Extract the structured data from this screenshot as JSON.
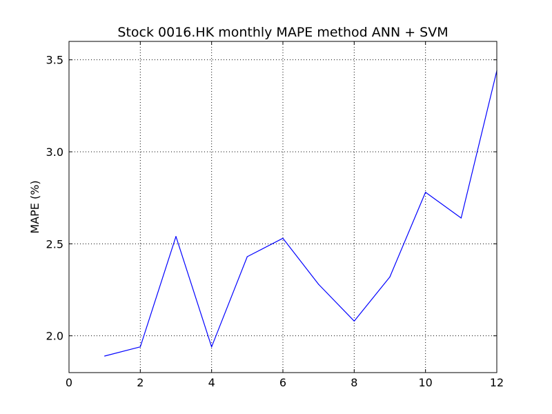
{
  "chart_data": {
    "type": "line",
    "title": "Stock 0016.HK monthly MAPE method ANN + SVM",
    "xlabel": "",
    "ylabel": "MAPE (%)",
    "xlim": [
      0,
      12
    ],
    "ylim": [
      1.8,
      3.6
    ],
    "xticks": [
      0,
      2,
      4,
      6,
      8,
      10,
      12
    ],
    "yticks": [
      2.0,
      2.5,
      3.0,
      3.5
    ],
    "xtick_labels": [
      "0",
      "2",
      "4",
      "6",
      "8",
      "10",
      "12"
    ],
    "ytick_labels": [
      "2.0",
      "2.5",
      "3.0",
      "3.5"
    ],
    "grid": true,
    "series": [
      {
        "color": "#0000ff",
        "x": [
          1,
          2,
          3,
          4,
          5,
          6,
          7,
          8,
          9,
          10,
          11,
          12
        ],
        "values": [
          1.89,
          1.94,
          2.54,
          1.94,
          2.43,
          2.53,
          2.28,
          2.08,
          2.32,
          2.78,
          2.64,
          3.44
        ]
      }
    ]
  }
}
